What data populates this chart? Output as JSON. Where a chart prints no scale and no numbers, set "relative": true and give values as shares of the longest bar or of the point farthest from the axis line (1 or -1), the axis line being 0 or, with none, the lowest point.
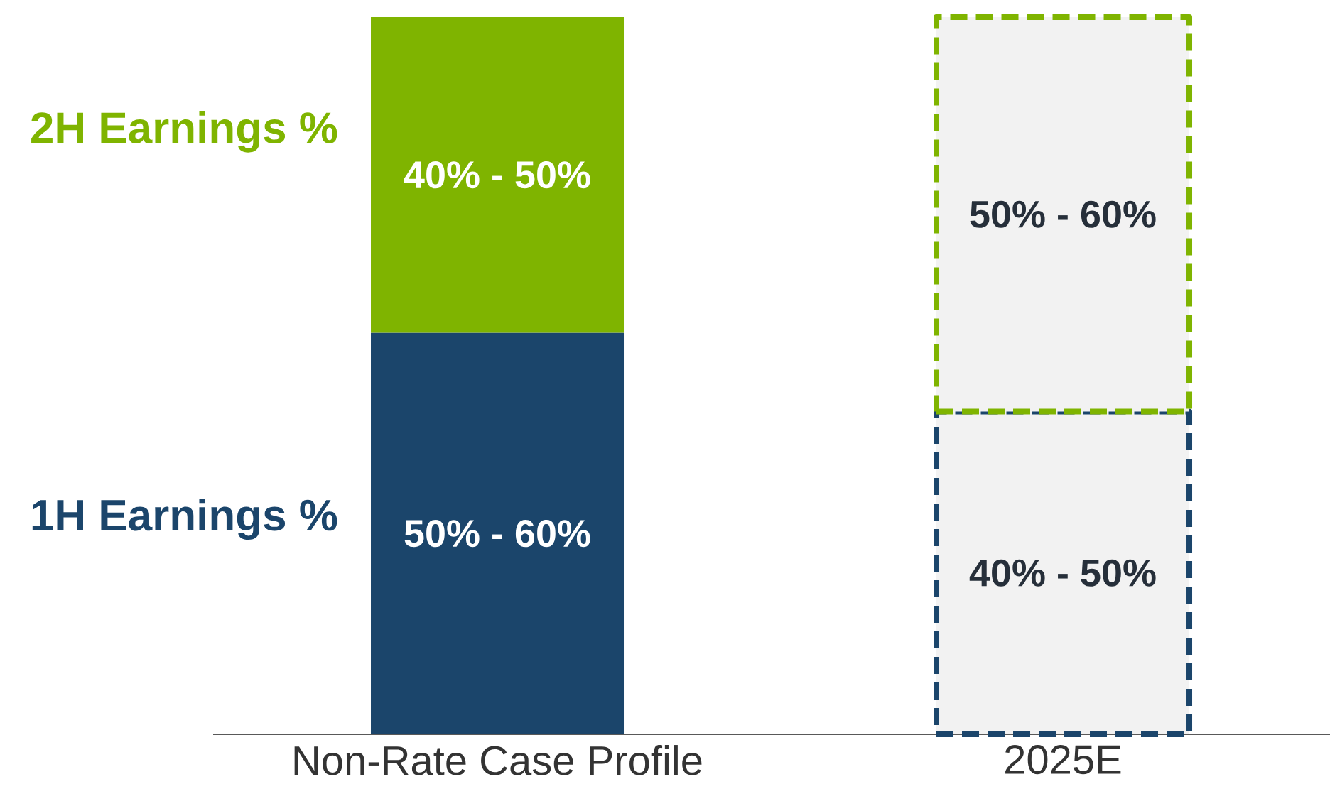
{
  "chart_data": {
    "type": "bar",
    "stacked": true,
    "relative": true,
    "categories": [
      "Non-Rate Case Profile",
      "2025E"
    ],
    "series": [
      {
        "name": "1H Earnings %",
        "color": "#1b456b",
        "colors": [
          "#1b456b",
          "#f2f2f2"
        ],
        "values": [
          0.56,
          0.45
        ]
      },
      {
        "name": "2H Earnings %",
        "color": "#7fb400",
        "colors": [
          "#7fb400",
          "#f2f2f2"
        ],
        "values": [
          0.44,
          0.55
        ]
      }
    ],
    "annotations": [
      "50% - 60%",
      "40% - 50%",
      "40% - 50%",
      "50% - 60%"
    ]
  }
}
